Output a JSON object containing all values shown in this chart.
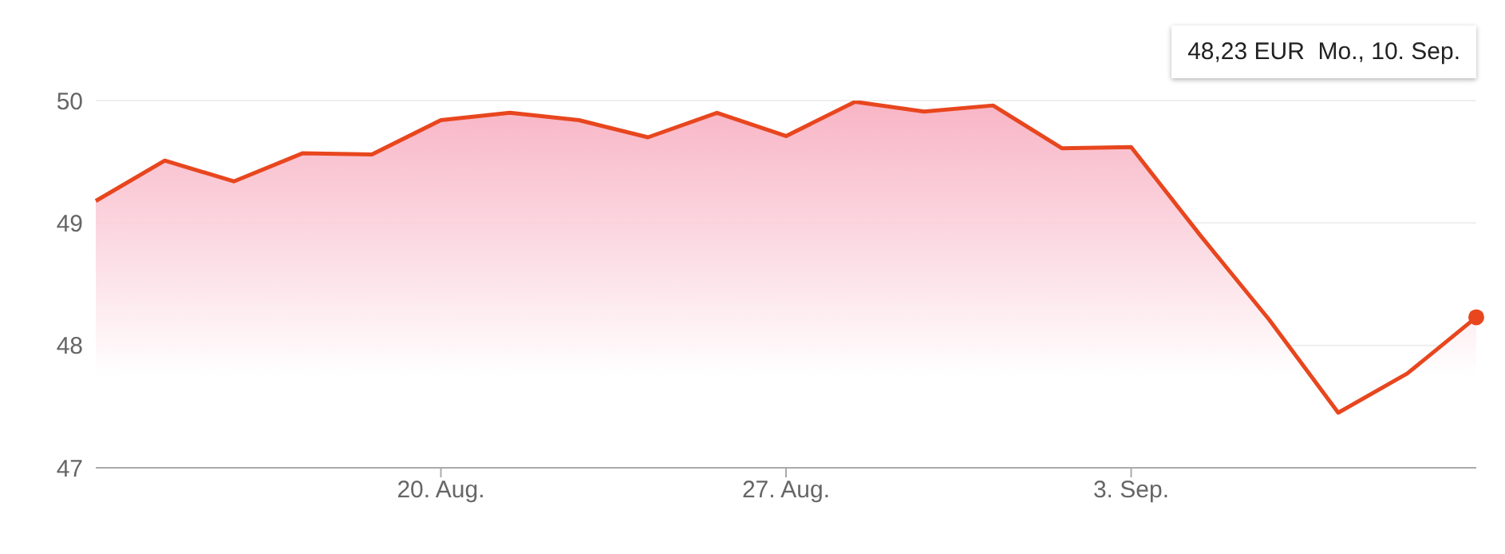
{
  "chart_data": {
    "type": "area",
    "categories": [
      null,
      null,
      null,
      null,
      null,
      "20. Aug.",
      null,
      null,
      null,
      null,
      "27. Aug.",
      null,
      null,
      null,
      null,
      "3. Sep.",
      null,
      null,
      null,
      null,
      null
    ],
    "series": [
      {
        "color": "#e8461e",
        "values": [
          49.18,
          49.51,
          49.34,
          49.57,
          49.56,
          49.84,
          49.9,
          49.84,
          49.7,
          49.9,
          49.71,
          49.99,
          49.91,
          49.96,
          49.61,
          49.62,
          48.9,
          48.21,
          47.45,
          47.77,
          48.23
        ]
      }
    ],
    "ylim": [
      47,
      50
    ],
    "yticks": [
      47,
      48,
      49,
      50
    ],
    "grid": "y",
    "legend": false,
    "marker": "none",
    "line_style": "solid",
    "annotations": [
      "48,23 EUR  Mo., 10. Sep."
    ]
  }
}
